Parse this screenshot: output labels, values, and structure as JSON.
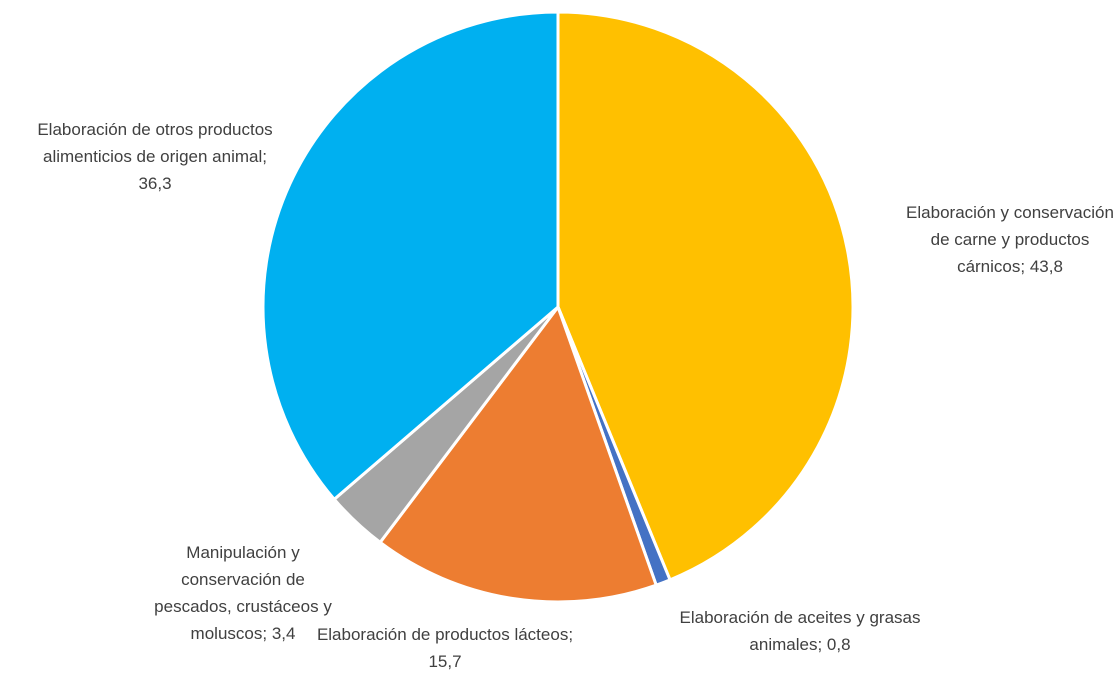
{
  "chart_data": {
    "type": "pie",
    "categories": [
      "Elaboración y conservación de carne y productos cárnicos",
      "Elaboración de aceites y grasas animales",
      "Elaboración de productos lácteos",
      "Manipulación y conservación de pescados, crustáceos y moluscos",
      "Elaboración de otros productos alimenticios de origen animal"
    ],
    "values": [
      43.8,
      0.8,
      15.7,
      3.4,
      36.3
    ],
    "value_labels": [
      "43,8",
      "0,8",
      "15,7",
      "3,4",
      "36,3"
    ],
    "label_separator": "; ",
    "colors": [
      "#ffc000",
      "#4472c4",
      "#ed7d31",
      "#a5a5a5",
      "#00b0f0"
    ]
  }
}
